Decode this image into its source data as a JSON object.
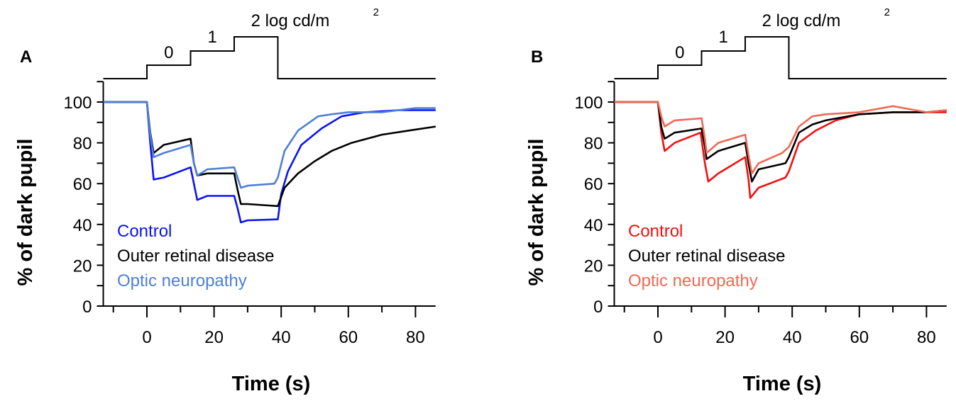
{
  "chart_data": [
    {
      "type": "line",
      "panel_label": "A",
      "xlabel": "Time (s)",
      "ylabel": "% of dark pupil",
      "xlim": [
        -13,
        86
      ],
      "ylim": [
        0,
        110
      ],
      "xticks": [
        0,
        20,
        40,
        60,
        80
      ],
      "yticks": [
        0,
        20,
        40,
        60,
        80,
        100
      ],
      "grid": false,
      "legend_placement": "bottom-left",
      "stimulus": {
        "labels": [
          "0",
          "1",
          "2  log cd/m",
          "2"
        ],
        "step_times": [
          0,
          13,
          26,
          39
        ]
      },
      "series": [
        {
          "name": "Control",
          "color": "#0a14f0",
          "x": [
            -13,
            0,
            1,
            2,
            5,
            13,
            14,
            15,
            18,
            26,
            27,
            28,
            30,
            39,
            40,
            42,
            46,
            52,
            58,
            65,
            75,
            86
          ],
          "y": [
            100,
            100,
            80,
            62,
            63,
            68,
            60,
            52,
            54,
            54,
            48,
            41,
            42,
            42.5,
            55,
            66,
            79,
            87,
            93,
            95,
            96,
            96
          ]
        },
        {
          "name": "Outer retinal disease",
          "color": "#000000",
          "x": [
            -13,
            0,
            1,
            2,
            5,
            13,
            14,
            15,
            18,
            26,
            27,
            28,
            30,
            39,
            41,
            45,
            50,
            55,
            61,
            70,
            78,
            86
          ],
          "y": [
            100,
            100,
            85,
            75,
            79,
            82,
            70,
            64,
            65,
            65,
            57,
            50,
            50,
            49,
            58,
            65,
            71,
            76,
            80,
            84,
            86,
            88
          ]
        },
        {
          "name": "Optic neuropathy",
          "color": "#4f7fd6",
          "x": [
            -13,
            0,
            1,
            2,
            5,
            13,
            14,
            15,
            18,
            26,
            27,
            28,
            30,
            38,
            39,
            41,
            45,
            51,
            55,
            60,
            70,
            80,
            86
          ],
          "y": [
            100,
            100,
            84,
            73,
            75,
            79,
            70,
            64,
            67,
            68,
            63,
            58,
            59,
            60,
            63,
            76,
            86,
            93,
            94,
            95,
            95,
            97,
            97
          ]
        }
      ]
    },
    {
      "type": "line",
      "panel_label": "B",
      "xlabel": "Time (s)",
      "ylabel": "% of dark pupil",
      "xlim": [
        -13,
        86
      ],
      "ylim": [
        0,
        110
      ],
      "xticks": [
        0,
        20,
        40,
        60,
        80
      ],
      "yticks": [
        0,
        20,
        40,
        60,
        80,
        100
      ],
      "grid": false,
      "legend_placement": "bottom-left",
      "stimulus": {
        "labels": [
          "0",
          "1",
          "2  log cd/m",
          "2"
        ],
        "step_times": [
          0,
          13,
          26,
          39
        ]
      },
      "series": [
        {
          "name": "Control",
          "color": "#f01010",
          "x": [
            -13,
            0,
            1,
            2,
            5,
            12.7,
            14,
            15,
            18,
            26,
            27,
            27.5,
            30,
            38,
            39,
            42,
            47,
            53,
            60,
            70,
            86
          ],
          "y": [
            100,
            100,
            85,
            76,
            80,
            85,
            70,
            61,
            65,
            73,
            62,
            53,
            58,
            63,
            66,
            80,
            86,
            91,
            94,
            95,
            95
          ]
        },
        {
          "name": "Outer retinal disease",
          "color": "#000000",
          "x": [
            -13,
            0,
            1,
            2,
            5,
            13,
            14,
            14.5,
            18,
            26,
            27,
            28,
            30,
            38,
            39,
            42,
            46,
            50,
            60,
            70,
            80,
            86
          ],
          "y": [
            100,
            100,
            88,
            82,
            85,
            87,
            78,
            72,
            76,
            80,
            70,
            61,
            67,
            70,
            73,
            85,
            89,
            91,
            94,
            95,
            95,
            96
          ]
        },
        {
          "name": "Optic neuropathy",
          "color": "#ee6a55",
          "x": [
            -13,
            0,
            1,
            2,
            5,
            13,
            14,
            14.5,
            18,
            26,
            27,
            28,
            30,
            37,
            39,
            42,
            46,
            50,
            60,
            70,
            80,
            86
          ],
          "y": [
            100,
            100,
            93,
            88,
            91,
            92,
            82,
            75,
            80,
            84,
            74,
            65,
            70,
            75,
            78,
            88,
            93,
            94,
            95,
            98,
            95,
            96
          ]
        }
      ]
    }
  ]
}
